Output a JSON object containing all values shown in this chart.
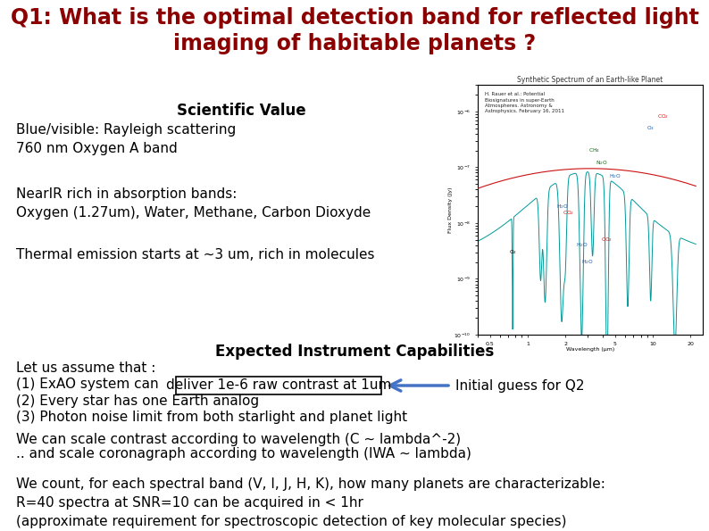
{
  "title_line1": "Q1: What is the optimal detection band for reflected light",
  "title_line2": "imaging of habitable planets ?",
  "title_color": "#8B0000",
  "title_fontsize": 17,
  "bg_color": "#FFFFFF",
  "section1_header": "Scientific Value",
  "section1_header_fontsize": 12,
  "text_blue_visible": "Blue/visible: Rayleigh scattering\n760 nm Oxygen A band",
  "text_nearir": "NearIR rich in absorption bands:\nOxygen (1.27um), Water, Methane, Carbon Dioxyde",
  "text_thermal": "Thermal emission starts at ~3 um, rich in molecules",
  "section2_header": "Expected Instrument Capabilities",
  "section2_header_fontsize": 12,
  "text_assume": "Let us assume that :",
  "text_exao_pre": "(1) ExAO system can ",
  "text_exao_box": "deliver 1e-6 raw contrast at 1um",
  "text_arrow_label": "Initial guess for Q2",
  "text_every_star": "(2) Every star has one Earth analog",
  "text_photon": "(3) Photon noise limit from both starlight and planet light",
  "text_scale1": "We can scale contrast according to wavelength (C ~ lambda^-2)",
  "text_scale2": ".. and scale coronagraph according to wavelength (IWA ~ lambda)",
  "text_count": "We count, for each spectral band (V, I, J, H, K), how many planets are characterizable:\nR=40 spectra at SNR=10 can be acquired in < 1hr\n(approximate requirement for spectroscopic detection of key molecular species)",
  "body_fontsize": 11,
  "body_color": "#000000",
  "fig_width": 7.94,
  "fig_height": 5.95,
  "dpi": 100
}
